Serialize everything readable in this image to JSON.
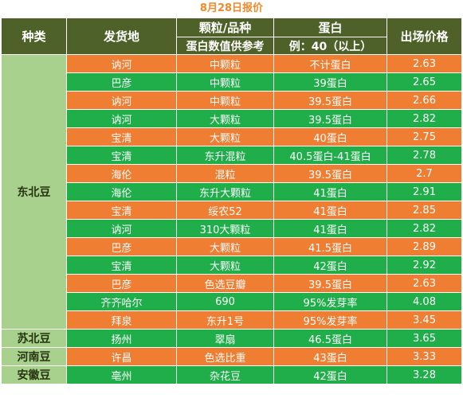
{
  "title": "8月28日报价",
  "header": {
    "category": "种类",
    "origin": "发货地",
    "grain_title": "颗粒/品种",
    "grain_sub": "蛋白数值供参考",
    "protein_title": "蛋白",
    "protein_sub": "例：40（以上）",
    "price": "出场价格"
  },
  "groups": [
    {
      "name": "东北豆",
      "rows": [
        {
          "origin": "讷河",
          "grain": "中颗粒",
          "protein": "不计蛋白",
          "price": "2.63"
        },
        {
          "origin": "巴彦",
          "grain": "中颗粒",
          "protein": "39蛋白",
          "price": "2.65"
        },
        {
          "origin": "讷河",
          "grain": "中颗粒",
          "protein": "39.5蛋白",
          "price": "2.66"
        },
        {
          "origin": "讷河",
          "grain": "大颗粒",
          "protein": "39.5蛋白",
          "price": "2.82"
        },
        {
          "origin": "宝清",
          "grain": "大颗粒",
          "protein": "40蛋白",
          "price": "2.75"
        },
        {
          "origin": "宝清",
          "grain": "东升混粒",
          "protein": "40.5蛋白-41蛋白",
          "price": "2.78"
        },
        {
          "origin": "海伦",
          "grain": "混粒",
          "protein": "39.5蛋白",
          "price": "2.7"
        },
        {
          "origin": "海伦",
          "grain": "东升大颗粒",
          "protein": "41蛋白",
          "price": "2.91"
        },
        {
          "origin": "宝清",
          "grain": "绥农52",
          "protein": "41蛋白",
          "price": "2.85"
        },
        {
          "origin": "讷河",
          "grain": "310大颗粒",
          "protein": "41蛋白",
          "price": "2.82"
        },
        {
          "origin": "巴彦",
          "grain": "大颗粒",
          "protein": "41.5蛋白",
          "price": "2.89"
        },
        {
          "origin": "宝清",
          "grain": "大颗粒",
          "protein": "42蛋白",
          "price": "2.92"
        },
        {
          "origin": "巴彦",
          "grain": "色选豆瓣",
          "protein": "39.5蛋白",
          "price": "2.63"
        },
        {
          "origin": "齐齐哈尔",
          "grain": "690",
          "protein": "95%发芽率",
          "price": "4.08"
        },
        {
          "origin": "拜泉",
          "grain": "东升1号",
          "protein": "95%发芽率",
          "price": "3.45"
        }
      ]
    },
    {
      "name": "苏北豆",
      "rows": [
        {
          "origin": "扬州",
          "grain": "翠扇",
          "protein": "46.5蛋白",
          "price": "3.65"
        }
      ]
    },
    {
      "name": "河南豆",
      "rows": [
        {
          "origin": "许昌",
          "grain": "色选比重",
          "protein": "43蛋白",
          "price": "3.33"
        }
      ]
    },
    {
      "name": "安徽豆",
      "rows": [
        {
          "origin": "亳州",
          "grain": "杂花豆",
          "protein": "42蛋白",
          "price": "3.28"
        }
      ]
    }
  ]
}
